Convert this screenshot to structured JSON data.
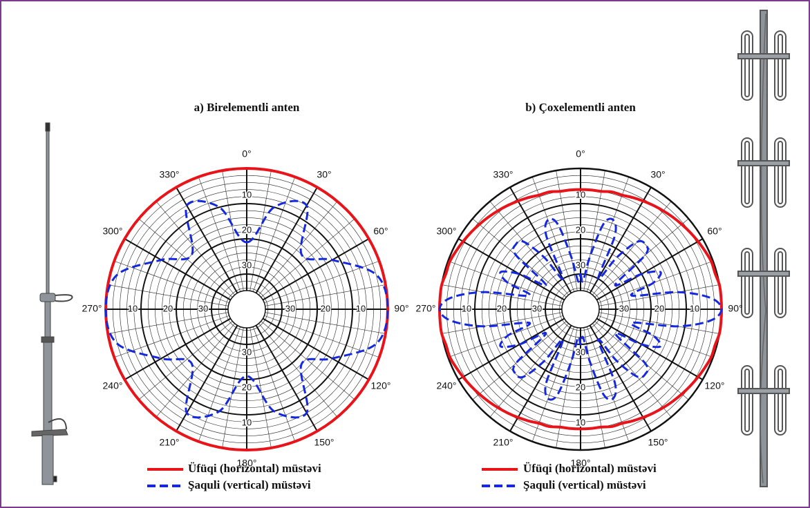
{
  "chart_data": [
    {
      "type": "polar",
      "title": "a) Birelementli anten",
      "angles": [
        0,
        15,
        30,
        45,
        60,
        75,
        90,
        105,
        120,
        135,
        150,
        165,
        180,
        195,
        210,
        225,
        240,
        255,
        270,
        285,
        300,
        315,
        330,
        345
      ],
      "rlim": [
        40,
        0
      ],
      "rticks": [
        10,
        20,
        30
      ],
      "angleticks": [
        {
          "value": 0,
          "label": "0°"
        },
        {
          "value": 30,
          "label": "30°"
        },
        {
          "value": 60,
          "label": "60°"
        },
        {
          "value": 90,
          "label": "90°"
        },
        {
          "value": 120,
          "label": "120°"
        },
        {
          "value": 150,
          "label": "150°"
        },
        {
          "value": 180,
          "label": "180°"
        },
        {
          "value": 210,
          "label": "210°"
        },
        {
          "value": 240,
          "label": "240°"
        },
        {
          "value": 270,
          "label": "270°"
        },
        {
          "value": 300,
          "label": "300°"
        },
        {
          "value": 330,
          "label": "330°"
        }
      ],
      "grid": true,
      "series": [
        {
          "name": "Üfüqi (horizontal) müstəvi",
          "color": "#e8141a",
          "style": "solid",
          "values": [
            0,
            0,
            0,
            0,
            0,
            0,
            0,
            0,
            0,
            0,
            0,
            0,
            0,
            0,
            0,
            0,
            0,
            0,
            0,
            0,
            0,
            0,
            0,
            0
          ]
        },
        {
          "name": "Şaquli (vertical) müstəvi",
          "color": "#1428e0",
          "style": "dashed",
          "values": [
            21,
            10,
            6,
            18,
            12,
            2,
            0,
            2,
            12,
            18,
            6,
            10,
            21,
            10,
            6,
            18,
            12,
            2,
            0,
            2,
            12,
            18,
            6,
            10
          ]
        }
      ]
    },
    {
      "type": "polar",
      "title": "b) Çoxelementli anten",
      "angles": [
        0,
        5,
        10,
        15,
        20,
        25,
        30,
        35,
        40,
        45,
        50,
        55,
        60,
        65,
        70,
        75,
        80,
        85,
        90,
        95,
        100,
        105,
        110,
        115,
        120,
        125,
        130,
        135,
        140,
        145,
        150,
        155,
        160,
        165,
        170,
        175,
        180,
        185,
        190,
        195,
        200,
        205,
        210,
        215,
        220,
        225,
        230,
        235,
        240,
        245,
        250,
        255,
        260,
        265,
        270,
        275,
        280,
        285,
        290,
        295,
        300,
        305,
        310,
        315,
        320,
        325,
        330,
        335,
        340,
        345,
        350,
        355
      ],
      "rlim": [
        40,
        0
      ],
      "rticks": [
        10,
        20,
        30
      ],
      "angleticks": [
        {
          "value": 0,
          "label": "0°"
        },
        {
          "value": 30,
          "label": "30°"
        },
        {
          "value": 60,
          "label": "60°"
        },
        {
          "value": 90,
          "label": "90°"
        },
        {
          "value": 120,
          "label": "120°"
        },
        {
          "value": 150,
          "label": "150°"
        },
        {
          "value": 180,
          "label": "180°"
        },
        {
          "value": 210,
          "label": "210°"
        },
        {
          "value": 240,
          "label": "240°"
        },
        {
          "value": 270,
          "label": "270°"
        },
        {
          "value": 300,
          "label": "300°"
        },
        {
          "value": 330,
          "label": "330°"
        }
      ],
      "grid": true,
      "series": [
        {
          "name": "Üfüqi (horizontal) müstəvi",
          "color": "#e8141a",
          "style": "solid",
          "values": [
            6,
            6,
            6,
            5.5,
            5.5,
            5,
            4.5,
            4,
            3.5,
            3,
            2.5,
            2,
            1.5,
            1,
            0.5,
            0.5,
            0,
            0,
            0,
            0,
            0,
            0.5,
            0.5,
            1,
            1.5,
            2,
            2.5,
            3,
            3.5,
            4,
            4.5,
            5,
            5.5,
            5.5,
            6,
            6,
            6,
            6,
            6,
            5.5,
            5.5,
            5,
            4.5,
            4,
            3.5,
            3,
            2.5,
            2,
            1.5,
            1,
            0.5,
            0.5,
            0,
            0,
            0,
            0,
            0,
            0.5,
            0.5,
            1,
            1.5,
            2,
            2.5,
            3,
            3.5,
            4,
            4.5,
            5,
            5.5,
            5.5,
            6,
            6
          ]
        },
        {
          "name": "Şaquli (vertical) müstəvi",
          "color": "#1428e0",
          "style": "dashed",
          "values": [
            30,
            32,
            25,
            15,
            13,
            17,
            30,
            22,
            15,
            14,
            16,
            28,
            20,
            15,
            18,
            25,
            12,
            3,
            0,
            3,
            12,
            25,
            18,
            15,
            20,
            28,
            16,
            14,
            15,
            22,
            30,
            17,
            13,
            15,
            25,
            32,
            30,
            32,
            25,
            15,
            13,
            17,
            30,
            22,
            15,
            14,
            16,
            28,
            20,
            15,
            18,
            25,
            12,
            3,
            0,
            3,
            12,
            25,
            18,
            15,
            20,
            28,
            16,
            14,
            15,
            22,
            30,
            17,
            13,
            15,
            25,
            32
          ]
        }
      ]
    }
  ]
}
